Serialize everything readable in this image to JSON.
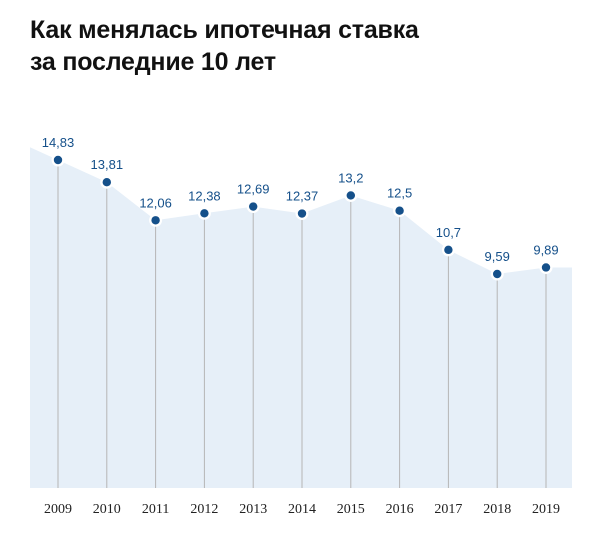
{
  "title_lines": [
    "Как менялась ипотечная ставка",
    "за последние 10 лет"
  ],
  "colors": {
    "area_fill": "#e6eff8",
    "point": "#15508a",
    "label": "#15508a",
    "drop_line": "#b5b5b5",
    "title": "#111111"
  },
  "chart_data": {
    "type": "area",
    "title": "Как менялась ипотечная ставка за последние 10 лет",
    "xlabel": "",
    "ylabel": "",
    "grid": false,
    "legend": "none",
    "categories": [
      "2009",
      "2010",
      "2011",
      "2012",
      "2013",
      "2014",
      "2015",
      "2016",
      "2017",
      "2018",
      "2019"
    ],
    "values": [
      14.83,
      13.81,
      12.06,
      12.38,
      12.69,
      12.37,
      13.2,
      12.5,
      10.7,
      9.59,
      9.89
    ],
    "value_labels": [
      "14,83",
      "13,81",
      "12,06",
      "12,38",
      "12,69",
      "12,37",
      "13,2",
      "12,5",
      "10,7",
      "9,59",
      "9,89"
    ]
  }
}
